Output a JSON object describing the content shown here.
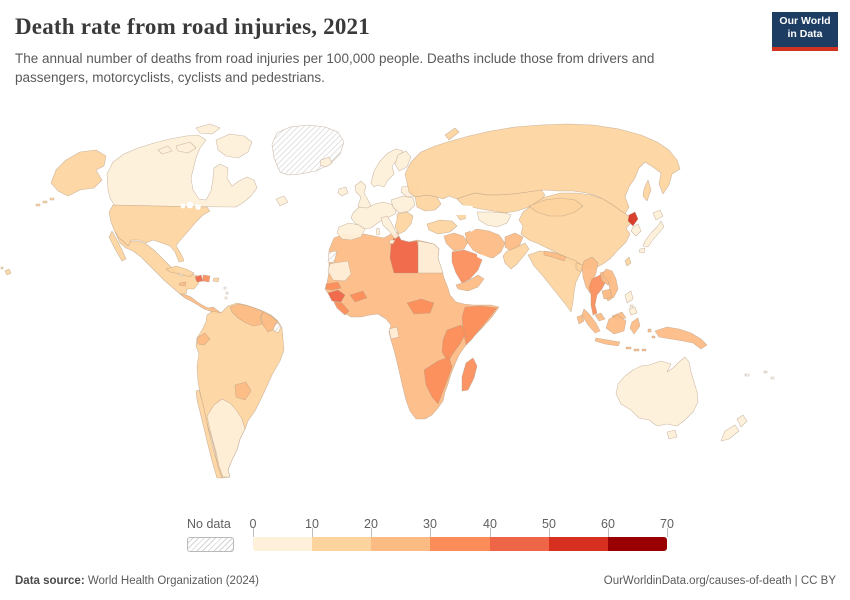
{
  "header": {
    "title": "Death rate from road injuries, 2021",
    "subtitle": "The annual number of deaths from road injuries per 100,000 people. Deaths include those from drivers and passengers, motorcyclists, cyclists and pedestrians.",
    "logo": {
      "line1": "Our World",
      "line2": "in Data",
      "bg_color": "#1d3d63",
      "accent_color": "#d0321f"
    }
  },
  "footer": {
    "source_label": "Data source:",
    "source_value": " World Health Organization (2024)",
    "credit": "OurWorldinData.org/causes-of-death | CC BY"
  },
  "map": {
    "border_color": "#b59d86",
    "ocean_color": "#ffffff",
    "no_data_hatch_color": "#cfcfcf"
  },
  "chart_data": {
    "type": "choropleth",
    "title": "Death rate from road injuries, 2021",
    "year": "2021",
    "unit": "deaths from road injuries per 100,000 people",
    "legend_position": "bottom",
    "no_data_label": "No data",
    "axis_ticks": [
      "0",
      "10",
      "20",
      "30",
      "40",
      "50",
      "60",
      "70"
    ],
    "bands": [
      {
        "range": "0-10",
        "color": "#fef0d9"
      },
      {
        "range": "10-20",
        "color": "#fdd49e"
      },
      {
        "range": "20-30",
        "color": "#fdbb84"
      },
      {
        "range": "30-40",
        "color": "#fc8d59"
      },
      {
        "range": "40-50",
        "color": "#ef6548"
      },
      {
        "range": "50-60",
        "color": "#d7301f"
      },
      {
        "range": "60-70",
        "color": "#990000"
      }
    ],
    "regions": {
      "canada": "0-10",
      "greenland": "no-data",
      "united-states": "10-20",
      "mexico": "10-20",
      "central-america": "20-30",
      "cuba": "10-20",
      "haiti": "40-50",
      "dominican-republic": "30-40",
      "jamaica": "20-30",
      "puerto-rico": "10-20",
      "lesser-antilles": "no-data",
      "colombia": "10-20",
      "venezuela": "20-30",
      "guyana-suriname": "20-30",
      "french-guiana": "no-data",
      "ecuador": "20-30",
      "brazil": "10-20",
      "paraguay": "20-30",
      "chile": "10-20",
      "argentina": "0-10",
      "iceland": "0-10",
      "ireland": "0-10",
      "united-kingdom": "0-10",
      "scandinavia": "0-10",
      "finland": "0-10",
      "western-europe": "0-10",
      "iberia": "0-10",
      "italy": "0-10",
      "eastern-europe": "0-10",
      "balkans": "10-20",
      "belarus-baltics": "0-10",
      "ukraine": "10-20",
      "russia": "10-20",
      "turkey": "10-20",
      "caucasus": "10-20",
      "kazakhstan": "10-20",
      "central-asia": "0-10",
      "iran": "20-30",
      "iraq-syria": "20-30",
      "saudi-arabia": "30-40",
      "yemen-oman": "20-30",
      "afghanistan": "20-30",
      "pakistan": "10-20",
      "india": "10-20",
      "nepal": "20-30",
      "bangladesh": "10-20",
      "sri-lanka": "20-30",
      "china": "10-20",
      "mongolia": "10-20",
      "north-korea": "50-60",
      "south-korea": "0-10",
      "japan": "0-10",
      "taiwan": "10-20",
      "myanmar": "20-30",
      "thailand": "30-40",
      "laos": "20-30",
      "vietnam": "20-30",
      "cambodia": "20-30",
      "malaysia": "20-30",
      "indonesia": "20-30",
      "philippines": "0-10",
      "papua-new-guinea": "20-30",
      "australia": "0-10",
      "new-zealand": "0-10",
      "pacific-islands": "no-data",
      "africa-most-countries": "20-30",
      "egypt": "0-10",
      "libya": "40-50",
      "western-sahara": "no-data",
      "mauritania": "0-10",
      "senegal": "30-40",
      "guinea": "40-50",
      "sierra-leone-liberia": "30-40",
      "burkina-faso-benin": "30-40",
      "central-african-republic": "30-40",
      "somalia": "30-40",
      "kenya-tanzania": "30-40",
      "gabon": "0-10",
      "zimbabwe-mozambique": "30-40",
      "madagascar": "30-40"
    }
  }
}
